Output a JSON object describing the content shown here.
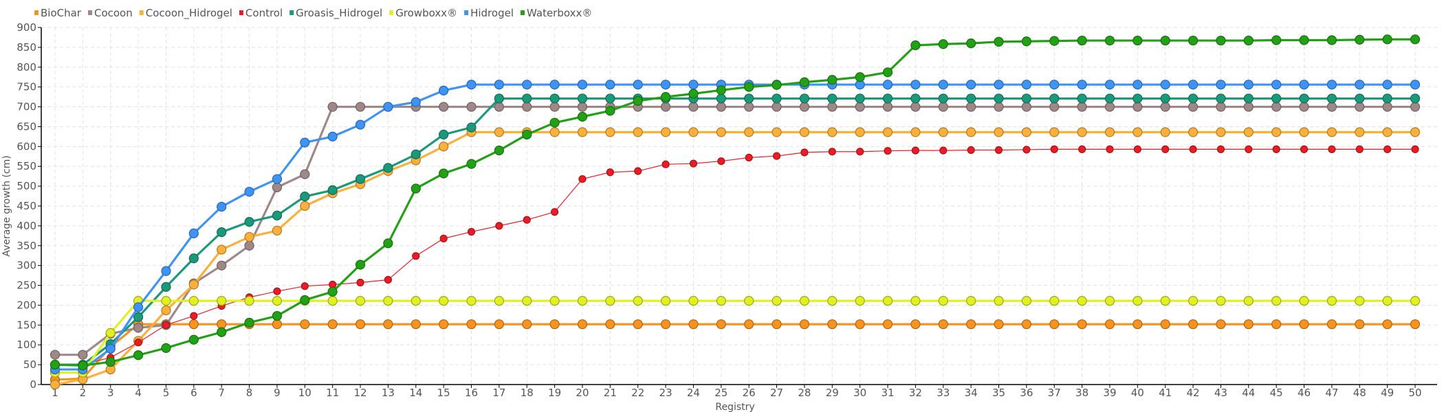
{
  "chart_data": {
    "type": "line",
    "title": "",
    "xlabel": "Registry",
    "ylabel": "Average growth (cm)",
    "ylim": [
      0,
      900
    ],
    "yticks": [
      0,
      50,
      100,
      150,
      200,
      250,
      300,
      350,
      400,
      450,
      500,
      550,
      600,
      650,
      700,
      750,
      800,
      850,
      900
    ],
    "x": [
      1,
      2,
      3,
      4,
      5,
      6,
      7,
      8,
      9,
      10,
      11,
      12,
      13,
      14,
      15,
      16,
      17,
      18,
      19,
      20,
      21,
      22,
      23,
      24,
      25,
      26,
      27,
      28,
      29,
      30,
      31,
      32,
      33,
      34,
      35,
      36,
      37,
      38,
      39,
      40,
      41,
      42,
      43,
      44,
      45,
      46,
      47,
      48,
      49,
      50
    ],
    "grid": true,
    "legend_position": "top-left",
    "series": [
      {
        "name": "BioChar",
        "color": "#f7931e",
        "values": [
          12,
          15,
          95,
          152,
          152,
          152,
          152,
          152,
          152,
          152,
          152,
          152,
          152,
          152,
          152,
          152,
          152,
          152,
          152,
          152,
          152,
          152,
          152,
          152,
          152,
          152,
          152,
          152,
          152,
          152,
          152,
          152,
          152,
          152,
          152,
          152,
          152,
          152,
          152,
          152,
          152,
          152,
          152,
          152,
          152,
          152,
          152,
          152,
          152,
          152
        ]
      },
      {
        "name": "Cocoon",
        "color": "#a08888",
        "values": [
          75,
          75,
          128,
          143,
          150,
          255,
          300,
          350,
          497,
          530,
          700,
          700,
          700,
          700,
          700,
          700,
          700,
          700,
          700,
          700,
          700,
          700,
          700,
          700,
          700,
          700,
          700,
          700,
          700,
          700,
          700,
          700,
          700,
          700,
          700,
          700,
          700,
          700,
          700,
          700,
          700,
          700,
          700,
          700,
          700,
          700,
          700,
          700,
          700,
          700
        ]
      },
      {
        "name": "Cocoon_Hidrogel",
        "color": "#fbb03b",
        "values": [
          0,
          13,
          38,
          110,
          187,
          252,
          340,
          372,
          388,
          450,
          482,
          505,
          538,
          565,
          600,
          636,
          636,
          636,
          636,
          636,
          636,
          636,
          636,
          636,
          636,
          636,
          636,
          636,
          636,
          636,
          636,
          636,
          636,
          636,
          636,
          636,
          636,
          636,
          636,
          636,
          636,
          636,
          636,
          636,
          636,
          636,
          636,
          636,
          636,
          636
        ]
      },
      {
        "name": "Control",
        "color": "#ed1c24",
        "values": [
          48,
          50,
          68,
          106,
          150,
          173,
          198,
          220,
          235,
          248,
          252,
          257,
          264,
          324,
          368,
          385,
          400,
          415,
          435,
          518,
          535,
          538,
          555,
          557,
          563,
          572,
          576,
          585,
          587,
          587,
          589,
          590,
          590,
          591,
          591,
          592,
          593,
          593,
          593,
          593,
          593,
          593,
          593,
          593,
          593,
          593,
          593,
          593,
          593,
          593
        ]
      },
      {
        "name": "Groasis_Hidrogel",
        "color": "#1a9a7a",
        "values": [
          50,
          50,
          102,
          170,
          246,
          318,
          384,
          410,
          426,
          474,
          490,
          518,
          546,
          580,
          630,
          648,
          721,
          721,
          721,
          721,
          721,
          721,
          721,
          721,
          721,
          721,
          721,
          721,
          721,
          721,
          721,
          721,
          721,
          721,
          721,
          721,
          721,
          721,
          721,
          721,
          721,
          721,
          721,
          721,
          721,
          721,
          721,
          721,
          721,
          721
        ]
      },
      {
        "name": "Growboxx®",
        "color": "#e0f020",
        "values": [
          30,
          30,
          130,
          211,
          211,
          211,
          211,
          211,
          211,
          211,
          211,
          211,
          211,
          211,
          211,
          211,
          211,
          211,
          211,
          211,
          211,
          211,
          211,
          211,
          211,
          211,
          211,
          211,
          211,
          211,
          211,
          211,
          211,
          211,
          211,
          211,
          211,
          211,
          211,
          211,
          211,
          211,
          211,
          211,
          211,
          211,
          211,
          211,
          211,
          211
        ]
      },
      {
        "name": "Hidrogel",
        "color": "#3d94f6",
        "values": [
          38,
          38,
          90,
          195,
          286,
          381,
          448,
          486,
          518,
          610,
          625,
          655,
          700,
          712,
          741,
          756,
          756,
          756,
          756,
          756,
          756,
          756,
          756,
          756,
          756,
          756,
          756,
          756,
          756,
          756,
          756,
          756,
          756,
          756,
          756,
          756,
          756,
          756,
          756,
          756,
          756,
          756,
          756,
          756,
          756,
          756,
          756,
          756,
          756,
          756
        ]
      },
      {
        "name": "Waterboxx®",
        "color": "#22a016",
        "values": [
          50,
          48,
          57,
          74,
          92,
          113,
          132,
          156,
          173,
          213,
          234,
          302,
          356,
          494,
          532,
          556,
          590,
          630,
          660,
          675,
          690,
          715,
          725,
          733,
          742,
          750,
          755,
          762,
          768,
          775,
          787,
          855,
          858,
          860,
          864,
          865,
          866,
          867,
          867,
          867,
          867,
          867,
          867,
          867,
          868,
          868,
          868,
          869,
          870,
          870
        ]
      }
    ]
  }
}
